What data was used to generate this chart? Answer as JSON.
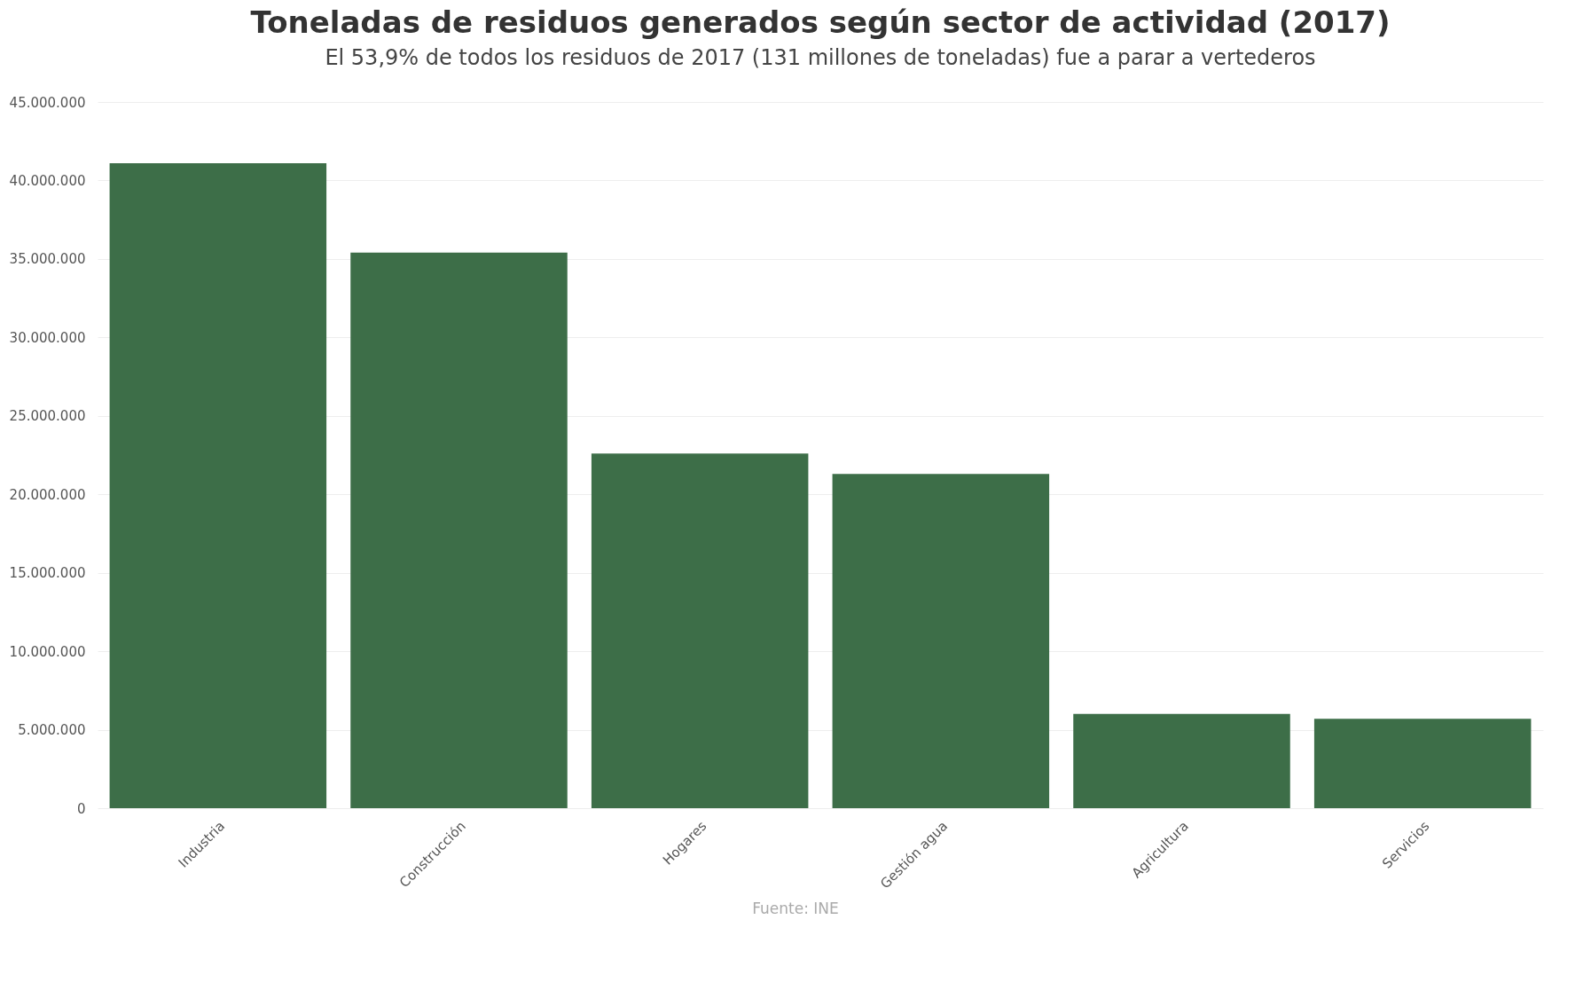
{
  "chart_data": {
    "type": "bar",
    "title": "Toneladas de residuos generados según sector de actividad (2017)",
    "subtitle": "El 53,9% de todos los residuos de 2017 (131 millones de toneladas) fue a parar a vertederos",
    "categories": [
      "Industria",
      "Construcción",
      "Hogares",
      "Gestión agua",
      "Agricultura",
      "Servicios"
    ],
    "values": [
      41100000,
      35400000,
      22600000,
      21300000,
      6000000,
      5700000
    ],
    "color": "#3d6e48",
    "ylim": [
      0,
      45000000
    ],
    "yticks": [
      {
        "value": 0,
        "label": "0"
      },
      {
        "value": 5000000,
        "label": "5.000.000"
      },
      {
        "value": 10000000,
        "label": "10.000.000"
      },
      {
        "value": 15000000,
        "label": "15.000.000"
      },
      {
        "value": 20000000,
        "label": "20.000.000"
      },
      {
        "value": 25000000,
        "label": "25.000.000"
      },
      {
        "value": 30000000,
        "label": "30.000.000"
      },
      {
        "value": 35000000,
        "label": "35.000.000"
      },
      {
        "value": 40000000,
        "label": "40.000.000"
      },
      {
        "value": 45000000,
        "label": "45.000.000"
      }
    ],
    "grid": "y",
    "annotations": [
      "Fuente: INE"
    ]
  }
}
